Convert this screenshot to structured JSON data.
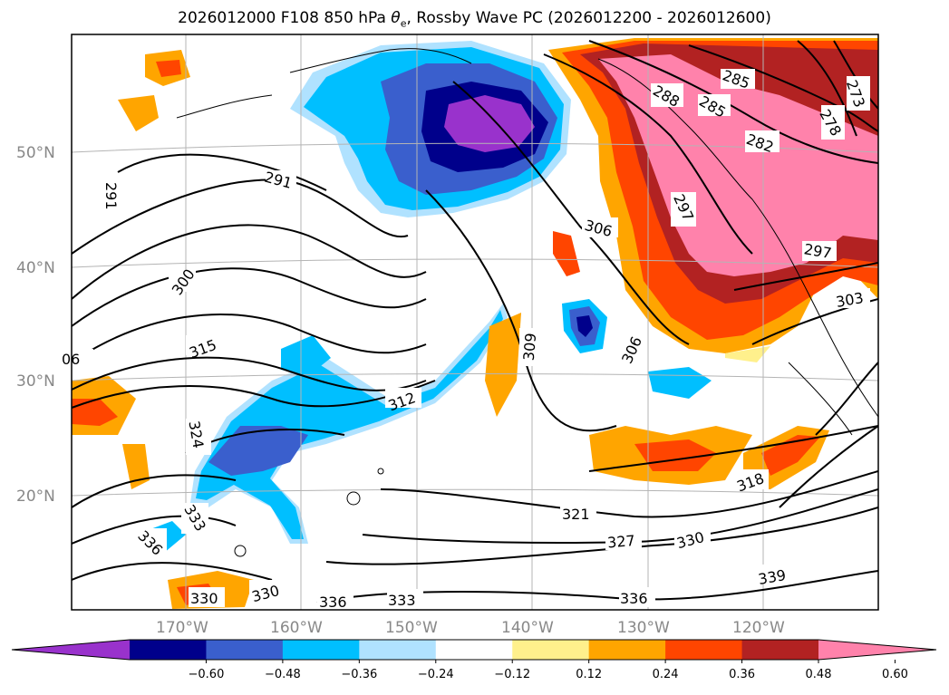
{
  "title": {
    "prefix": "2026012000 F108 850 hPa ",
    "symbol": "θ",
    "subscript": "e",
    "suffix": ", Rossby Wave PC (2026012200 - 2026012600)"
  },
  "map": {
    "projection": "Lambert Conformal",
    "gridlines": true,
    "lat_labels": [
      "50°N",
      "40°N",
      "30°N",
      "20°N"
    ],
    "lon_labels": [
      "170°W",
      "160°W",
      "150°W",
      "140°W",
      "130°W",
      "120°W"
    ]
  },
  "contours": {
    "variable": "850 hPa equivalent potential temperature (K)",
    "labels": [
      "291",
      "291",
      "300",
      "306",
      "315",
      "312",
      "324",
      "333",
      "336",
      "330",
      "330",
      "336",
      "333",
      "309",
      "306",
      "297",
      "288",
      "285",
      "285",
      "282",
      "278",
      "273",
      "297",
      "303",
      "318",
      "321",
      "327",
      "330",
      "336",
      "339"
    ]
  },
  "colorbar": {
    "labels": [
      "−0.60",
      "−0.48",
      "−0.36",
      "−0.24",
      "−0.12",
      "0.12",
      "0.24",
      "0.36",
      "0.48",
      "0.60"
    ],
    "colors": [
      "#9932cc",
      "#00008b",
      "#3a5fcd",
      "#00bfff",
      "#b0e2ff",
      "#ffffff",
      "#fff08c",
      "#ffa500",
      "#ff4500",
      "#b22222",
      "#ff82ab"
    ],
    "extend": "both"
  },
  "colors": {
    "purple": "#9932cc",
    "navy": "#00008b",
    "royal_blue": "#3a5fcd",
    "deep_sky_blue": "#00bfff",
    "light_blue": "#b0e2ff",
    "light_yellow": "#fff08c",
    "orange": "#ffa500",
    "orange_red": "#ff4500",
    "firebrick": "#b22222",
    "pink": "#ff82ab"
  }
}
